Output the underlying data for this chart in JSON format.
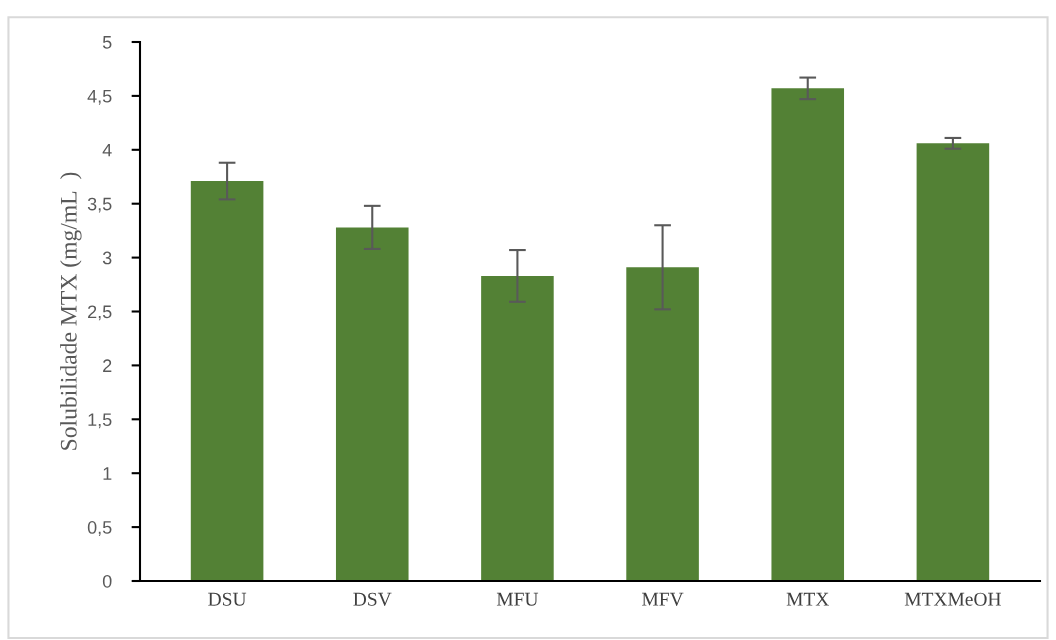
{
  "chart_data": {
    "type": "bar",
    "ylabel": "Solubilidade MTX (mg/mL  )",
    "categories": [
      "DSU",
      "DSV",
      "MFU",
      "MFV",
      "MTX",
      "MTXMeOH"
    ],
    "values": [
      3.71,
      3.28,
      2.83,
      2.91,
      4.57,
      4.06
    ],
    "errors": [
      0.17,
      0.2,
      0.24,
      0.39,
      0.1,
      0.05
    ],
    "color": "#538135",
    "ylim": [
      0,
      5
    ],
    "yticks": [
      0,
      {
        "value": 0.5,
        "label": "0,5"
      },
      1,
      {
        "value": 1.5,
        "label": "1,5"
      },
      2,
      {
        "value": 2.5,
        "label": "2,5"
      },
      3,
      {
        "value": 3.5,
        "label": "3,5"
      },
      4,
      {
        "value": 4.5,
        "label": "4,5"
      },
      5
    ],
    "grid": false,
    "legend": false
  }
}
